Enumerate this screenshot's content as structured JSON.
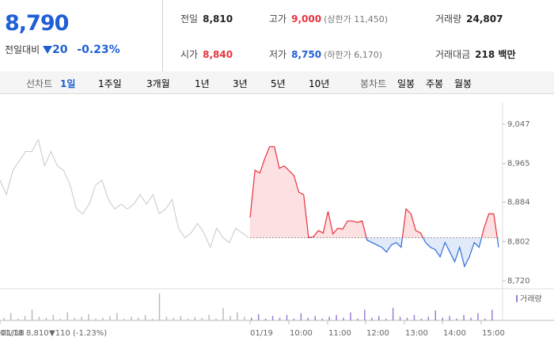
{
  "header": {
    "price": "8,790",
    "change_label": "전일대비",
    "change": "20",
    "change_pct": "-0.23%",
    "stats": [
      [
        "전일",
        "8,810",
        ""
      ],
      [
        "고가",
        "9,000",
        "(상한가 11,450)"
      ],
      [
        "거래량",
        "24,807",
        ""
      ],
      [
        "시가",
        "8,840",
        ""
      ],
      [
        "저가",
        "8,750",
        "(하한가 6,170)"
      ],
      [
        "거래대금",
        "218 백만",
        ""
      ]
    ]
  },
  "tabs": {
    "line_label": "선차트",
    "line_items": [
      "1일",
      "1주일",
      "3개월",
      "1년",
      "3년",
      "5년",
      "10년"
    ],
    "candle_label": "봉차트",
    "candle_items": [
      "일봉",
      "주봉",
      "월봉"
    ]
  },
  "chart_data": {
    "type": "line",
    "baseline": 8810,
    "ylim": [
      8720,
      9047
    ],
    "yticks": [
      {
        "value": 9047,
        "label": "9,047"
      },
      {
        "value": 8965,
        "label": "8,965"
      },
      {
        "value": 8884,
        "label": "8,884"
      },
      {
        "value": 8802,
        "label": "8,802"
      },
      {
        "value": 8720,
        "label": "8,720"
      }
    ],
    "xtick_labels": [
      "01/18",
      "01/19",
      "10:00",
      "11:00",
      "12:00",
      "13:00",
      "14:00",
      "15:00"
    ],
    "series": [
      {
        "name": "01/18",
        "color": "#c8c8c8",
        "values": [
          8930,
          8900,
          8950,
          8970,
          8990,
          8990,
          9015,
          8960,
          8990,
          8960,
          8950,
          8920,
          8870,
          8860,
          8880,
          8920,
          8930,
          8890,
          8870,
          8880,
          8870,
          8880,
          8900,
          8880,
          8900,
          8860,
          8870,
          8890,
          8830,
          8810,
          8820,
          8840,
          8820,
          8790,
          8830,
          8810,
          8800,
          8830,
          8820,
          8810
        ]
      },
      {
        "name": "01/19",
        "up_color": "#e8323c",
        "down_color": "#2f6fd8",
        "values": [
          8852,
          8951,
          8945,
          8975,
          9000,
          9000,
          8955,
          8960,
          8950,
          8940,
          8905,
          8900,
          8810,
          8812,
          8825,
          8820,
          8865,
          8818,
          8830,
          8828,
          8845,
          8845,
          8842,
          8845,
          8805,
          8800,
          8795,
          8790,
          8780,
          8795,
          8800,
          8790,
          8870,
          8860,
          8825,
          8820,
          8800,
          8790,
          8785,
          8770,
          8800,
          8780,
          8760,
          8790,
          8750,
          8770,
          8800,
          8790,
          8830,
          8860,
          8860,
          8790
        ]
      }
    ],
    "volume_label": "거래량",
    "volume_color": "#9b7fd4",
    "volume": [
      3,
      8,
      2,
      5,
      12,
      4,
      3,
      6,
      2,
      9,
      3,
      4,
      7,
      2,
      3,
      5,
      8,
      2,
      4,
      3,
      6,
      2,
      30,
      4,
      3,
      5,
      2,
      4,
      3,
      6,
      2,
      14,
      5,
      9,
      4,
      3,
      7,
      2,
      5,
      3,
      6,
      2,
      8,
      3,
      5,
      2,
      4,
      6,
      3,
      9,
      2,
      12,
      3,
      5,
      2,
      14,
      4,
      3,
      6,
      2,
      4,
      11,
      3,
      5,
      2,
      6,
      3,
      8,
      2,
      12
    ]
  },
  "footer": {
    "date": "01/18",
    "close": "8,810",
    "change": "▼110 (-1.23%)"
  }
}
